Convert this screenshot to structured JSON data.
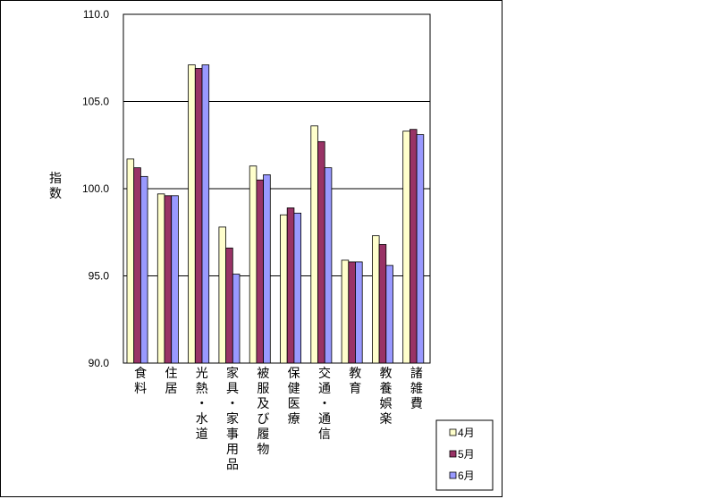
{
  "chart_data": {
    "type": "bar",
    "ylabel": "指数",
    "ylim": [
      90.0,
      110.0
    ],
    "yticks": [
      "90.0",
      "95.0",
      "100.0",
      "105.0",
      "110.0"
    ],
    "ytick_values": [
      90,
      95,
      100,
      105,
      110
    ],
    "grid": true,
    "legend_position": "bottom-right",
    "categories": [
      "食料",
      "住居",
      "光熱・水道",
      "家具・家事用品",
      "被服及び履物",
      "保健医療",
      "交通・通信",
      "教育",
      "教養娯楽",
      "諸雑費"
    ],
    "series": [
      {
        "name": "4月",
        "color": "#ffffcc",
        "values": [
          101.7,
          99.7,
          107.1,
          97.8,
          101.3,
          98.5,
          103.6,
          95.9,
          97.3,
          103.3
        ]
      },
      {
        "name": "5月",
        "color": "#993366",
        "values": [
          101.2,
          99.6,
          106.9,
          96.6,
          100.5,
          98.9,
          102.7,
          95.8,
          96.8,
          103.4
        ]
      },
      {
        "name": "6月",
        "color": "#9999ff",
        "values": [
          100.7,
          99.6,
          107.1,
          95.1,
          100.8,
          98.6,
          101.2,
          95.8,
          95.6,
          103.1
        ]
      }
    ]
  }
}
